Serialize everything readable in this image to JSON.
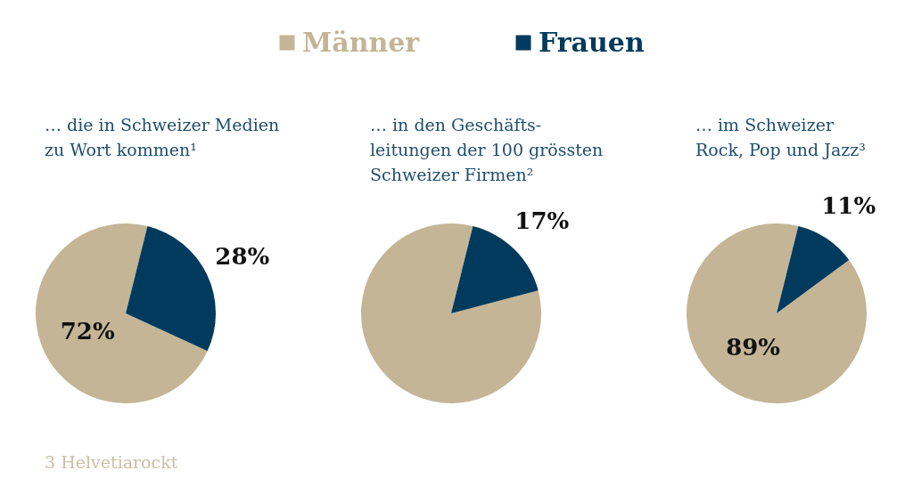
{
  "chart_data": [
    {
      "type": "pie",
      "title": "… die in Schweizer Medien\nzu Wort kommen¹",
      "categories": [
        "Männer",
        "Frauen"
      ],
      "values": [
        72,
        28
      ],
      "colors": [
        "#c3b596",
        "#003a5c"
      ],
      "value_labels": [
        "72%",
        "28%"
      ],
      "legend": "top",
      "annotations": [
        "3 Helvetiarockt"
      ]
    },
    {
      "type": "pie",
      "title": "… in den Geschäfts-\nleitungen der 100 grössten\nSchweizer Firmen²",
      "categories": [
        null,
        null
      ],
      "values": [
        83,
        17
      ],
      "colors": [
        "#c3b596",
        "#003a5c"
      ],
      "value_labels": [
        null,
        "17%"
      ]
    },
    {
      "type": "pie",
      "title": "… im Schweizer\nRock, Pop und Jazz³",
      "categories": [
        null,
        null
      ],
      "values": [
        89,
        11
      ],
      "colors": [
        "#c3b596",
        "#003a5c"
      ],
      "value_labels": [
        "89%",
        "11%"
      ]
    }
  ]
}
